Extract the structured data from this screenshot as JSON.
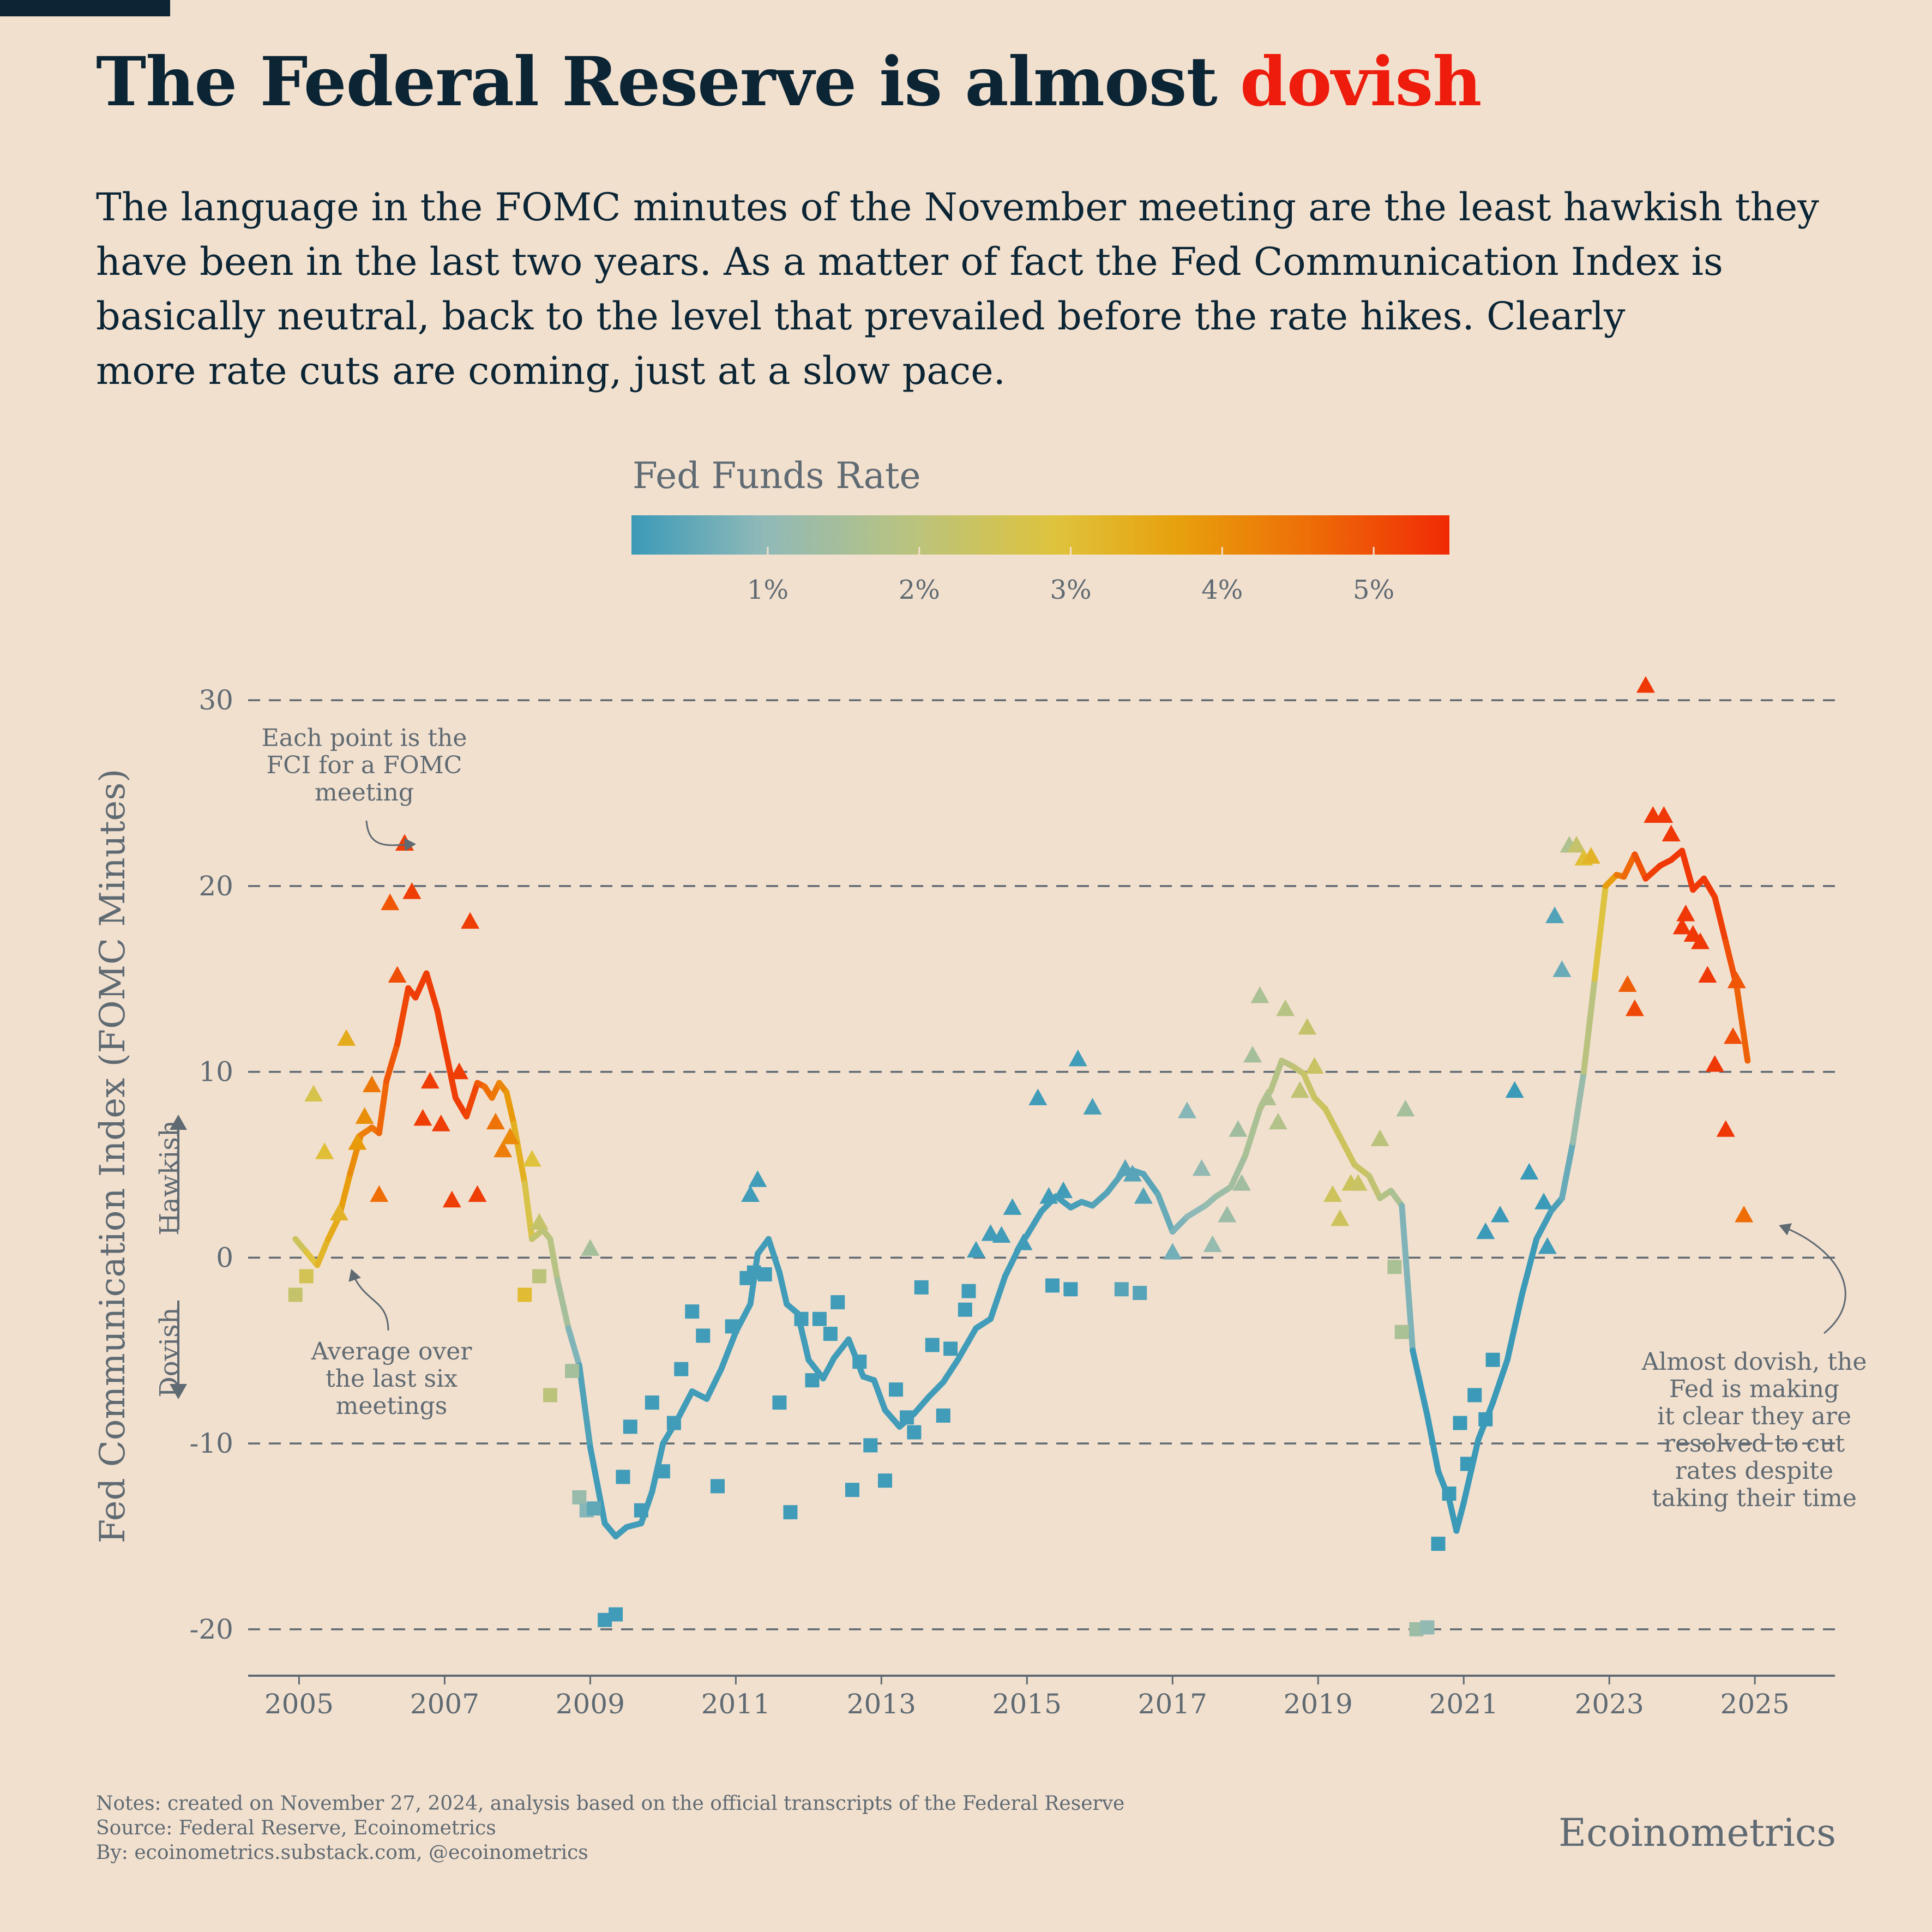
{
  "title": {
    "main": "The Federal Reserve is almost ",
    "accent": "dovish"
  },
  "subtitle_lines": [
    "The language in the FOMC minutes of the November meeting are the least hawkish they",
    "have been in the last two years. As a matter of fact the Fed Communication Index is",
    "basically neutral, back to the level that prevailed before the rate hikes. Clearly",
    "more rate cuts are coming, just at a slow pace."
  ],
  "colors": {
    "background": "#f2e0cf",
    "title": "#0b2535",
    "accent": "#ee1c0c",
    "axis": "#5f6a72",
    "gradient_stops": [
      "#3b9ab8",
      "#8fb9b8",
      "#b7c383",
      "#dfc33c",
      "#e7a00c",
      "#ee6d07",
      "#f02a06"
    ]
  },
  "footer": {
    "notes": "Notes: created on November 27, 2024, analysis based on the official transcripts of the Federal Reserve",
    "source": "Source: Federal Reserve, Ecoinometrics",
    "by": "By: ecoinometrics.substack.com, @ecoinometrics",
    "brand": "Ecoinometrics"
  },
  "chart_data": {
    "type": "line",
    "ylabel": "Fed Communication Index (FOMC Minutes)",
    "xlabel": "",
    "ylim": [
      -22.5,
      31
    ],
    "xlim": [
      2004.3,
      2026.1
    ],
    "yticks": [
      -20,
      -10,
      0,
      10,
      20,
      30
    ],
    "xticks": [
      2005,
      2007,
      2009,
      2011,
      2013,
      2015,
      2017,
      2019,
      2021,
      2023,
      2025
    ],
    "grid": "horizontal dashed",
    "legend": {
      "title": "Fed Funds Rate",
      "range": [
        0.1,
        5.5
      ],
      "ticks": [
        1,
        2,
        3,
        4,
        5
      ],
      "tick_labels": [
        "1%",
        "2%",
        "3%",
        "4%",
        "5%"
      ]
    },
    "direction_labels": {
      "hawkish": "Hawkish",
      "dovish": "Dovish"
    },
    "annotations": [
      {
        "text": [
          "Each point is the",
          "FCI for a FOMC",
          "meeting"
        ]
      },
      {
        "text": [
          "Average over",
          "the last six",
          "meetings"
        ]
      },
      {
        "text": [
          "Almost dovish, the",
          "Fed is making",
          "it clear they are",
          "resolved to cut",
          "rates despite",
          "taking their time"
        ]
      }
    ],
    "series": [
      {
        "name": "Average over the last six meetings",
        "x": [
          2004.95,
          2005.1,
          2005.25,
          2005.4,
          2005.55,
          2005.7,
          2005.85,
          2006.0,
          2006.1,
          2006.2,
          2006.35,
          2006.5,
          2006.6,
          2006.75,
          2006.9,
          2007.0,
          2007.15,
          2007.3,
          2007.45,
          2007.55,
          2007.65,
          2007.75,
          2007.85,
          2007.95,
          2008.1,
          2008.2,
          2008.35,
          2008.45,
          2008.55,
          2008.7,
          2008.85,
          2009.0,
          2009.2,
          2009.35,
          2009.5,
          2009.7,
          2009.85,
          2010.0,
          2010.2,
          2010.4,
          2010.6,
          2010.8,
          2011.0,
          2011.2,
          2011.3,
          2011.45,
          2011.6,
          2011.7,
          2011.85,
          2012.0,
          2012.2,
          2012.35,
          2012.55,
          2012.75,
          2012.9,
          2013.05,
          2013.25,
          2013.45,
          2013.65,
          2013.85,
          2014.05,
          2014.3,
          2014.5,
          2014.7,
          2014.9,
          2015.0,
          2015.2,
          2015.4,
          2015.6,
          2015.75,
          2015.9,
          2016.1,
          2016.3,
          2016.45,
          2016.6,
          2016.8,
          2017.0,
          2017.2,
          2017.45,
          2017.6,
          2017.8,
          2018.0,
          2018.2,
          2018.35,
          2018.5,
          2018.65,
          2018.8,
          2018.95,
          2019.1,
          2019.3,
          2019.5,
          2019.7,
          2019.85,
          2020.0,
          2020.15,
          2020.3,
          2020.5,
          2020.65,
          2020.8,
          2020.9,
          2021.0,
          2021.2,
          2021.4,
          2021.6,
          2021.8,
          2022.0,
          2022.2,
          2022.35,
          2022.5,
          2022.65,
          2022.8,
          2022.95,
          2023.1,
          2023.2,
          2023.35,
          2023.5,
          2023.7,
          2023.85,
          2024.0,
          2024.15,
          2024.3,
          2024.45,
          2024.6,
          2024.75,
          2024.9
        ],
        "y": [
          1.0,
          0.3,
          -0.4,
          1.0,
          2.2,
          4.5,
          6.6,
          7.0,
          6.7,
          9.5,
          11.5,
          14.5,
          14.0,
          15.3,
          13.3,
          11.4,
          8.6,
          7.6,
          9.4,
          9.2,
          8.6,
          9.4,
          8.9,
          7.2,
          4.0,
          1.0,
          1.5,
          1.0,
          -1.2,
          -3.8,
          -5.8,
          -10.2,
          -14.3,
          -15.0,
          -14.5,
          -14.3,
          -12.6,
          -10.0,
          -8.7,
          -7.2,
          -7.6,
          -6.0,
          -4.0,
          -2.5,
          0.2,
          1.0,
          -0.8,
          -2.5,
          -3.0,
          -5.5,
          -6.5,
          -5.4,
          -4.4,
          -6.4,
          -6.6,
          -8.2,
          -9.1,
          -8.4,
          -7.5,
          -6.7,
          -5.5,
          -3.8,
          -3.3,
          -1.0,
          0.6,
          1.2,
          2.5,
          3.3,
          2.7,
          3.0,
          2.8,
          3.5,
          4.5,
          4.7,
          4.5,
          3.4,
          1.4,
          2.2,
          2.8,
          3.3,
          3.8,
          5.5,
          8.0,
          9.0,
          10.6,
          10.3,
          9.9,
          8.6,
          8.0,
          6.5,
          5.0,
          4.4,
          3.2,
          3.6,
          2.8,
          -5.0,
          -8.5,
          -11.5,
          -13.0,
          -14.7,
          -13.2,
          -9.8,
          -7.8,
          -5.5,
          -2.0,
          1.0,
          2.5,
          3.2,
          6.2,
          10.0,
          15.0,
          20.0,
          20.6,
          20.5,
          21.7,
          20.4,
          21.1,
          21.4,
          21.9,
          19.8,
          20.4,
          19.4,
          17.0,
          14.6,
          10.6
        ],
        "rate": [
          2.2,
          2.6,
          3.0,
          3.3,
          3.6,
          3.9,
          4.2,
          4.4,
          4.6,
          4.8,
          5.0,
          5.25,
          5.25,
          5.25,
          5.25,
          5.25,
          5.25,
          5.25,
          5.0,
          4.7,
          4.5,
          4.3,
          4.0,
          3.6,
          3.0,
          2.3,
          2.0,
          2.0,
          1.8,
          1.2,
          0.5,
          0.15,
          0.15,
          0.15,
          0.15,
          0.15,
          0.15,
          0.15,
          0.15,
          0.15,
          0.15,
          0.15,
          0.15,
          0.15,
          0.15,
          0.15,
          0.15,
          0.15,
          0.15,
          0.15,
          0.15,
          0.15,
          0.15,
          0.15,
          0.15,
          0.15,
          0.15,
          0.15,
          0.15,
          0.15,
          0.15,
          0.15,
          0.15,
          0.15,
          0.15,
          0.2,
          0.2,
          0.2,
          0.2,
          0.25,
          0.35,
          0.4,
          0.4,
          0.4,
          0.4,
          0.45,
          0.7,
          0.9,
          1.1,
          1.2,
          1.4,
          1.5,
          1.7,
          1.8,
          1.9,
          2.0,
          2.2,
          2.3,
          2.4,
          2.4,
          2.4,
          2.2,
          2.0,
          1.7,
          1.55,
          0.1,
          0.1,
          0.1,
          0.1,
          0.1,
          0.1,
          0.1,
          0.1,
          0.1,
          0.1,
          0.1,
          0.2,
          0.35,
          0.8,
          1.6,
          2.3,
          3.2,
          4.3,
          4.5,
          4.8,
          5.1,
          5.33,
          5.33,
          5.33,
          5.33,
          5.33,
          5.33,
          5.1,
          4.9,
          4.6
        ]
      },
      {
        "name": "Hawkish meeting (triangles)",
        "x": [
          2005.2,
          2005.35,
          2005.55,
          2005.65,
          2005.8,
          2005.9,
          2006.0,
          2006.1,
          2006.25,
          2006.35,
          2006.45,
          2006.55,
          2006.7,
          2006.8,
          2006.95,
          2007.1,
          2007.2,
          2007.35,
          2007.45,
          2007.7,
          2007.8,
          2007.9,
          2008.2,
          2008.3,
          2009.0,
          2011.2,
          2011.3,
          2014.3,
          2014.5,
          2014.65,
          2014.8,
          2014.95,
          2015.15,
          2015.3,
          2015.5,
          2015.7,
          2015.9,
          2016.35,
          2016.45,
          2016.6,
          2017.0,
          2017.2,
          2017.4,
          2017.55,
          2017.75,
          2017.9,
          2017.95,
          2018.1,
          2018.2,
          2018.3,
          2018.45,
          2018.55,
          2018.75,
          2018.85,
          2018.95,
          2019.2,
          2019.3,
          2019.45,
          2019.55,
          2019.85,
          2020.2,
          2021.3,
          2021.5,
          2021.7,
          2021.9,
          2022.1,
          2022.15,
          2022.25,
          2022.35,
          2022.45,
          2022.55,
          2022.65,
          2022.75,
          2023.25,
          2023.35,
          2023.5,
          2023.6,
          2023.75,
          2023.85,
          2024.0,
          2024.05,
          2024.15,
          2024.25,
          2024.35,
          2024.45,
          2024.6,
          2024.7,
          2024.75,
          2024.85
        ],
        "y": [
          8.8,
          5.7,
          2.4,
          11.8,
          6.2,
          7.6,
          9.3,
          3.4,
          19.1,
          15.2,
          22.3,
          19.7,
          7.5,
          9.5,
          7.2,
          3.1,
          10.0,
          18.1,
          3.4,
          7.3,
          5.8,
          6.5,
          5.3,
          1.9,
          0.5,
          3.4,
          4.2,
          0.4,
          1.3,
          1.2,
          2.7,
          0.8,
          8.6,
          3.3,
          3.6,
          10.7,
          8.1,
          4.8,
          4.5,
          3.3,
          0.3,
          7.9,
          4.8,
          0.7,
          2.3,
          6.9,
          4.0,
          10.9,
          14.1,
          8.6,
          7.3,
          13.4,
          9.0,
          12.4,
          10.3,
          3.4,
          2.1,
          4.0,
          4.0,
          6.4,
          8.0,
          1.4,
          2.3,
          9.0,
          4.6,
          3.0,
          0.6,
          18.4,
          15.5,
          22.2,
          22.2,
          21.5,
          21.6,
          14.7,
          13.4,
          30.8,
          23.8,
          23.8,
          22.8,
          17.8,
          18.5,
          17.4,
          17.0,
          15.2,
          10.4,
          6.9,
          11.9,
          14.9,
          2.3
        ],
        "rate": [
          2.6,
          2.9,
          3.2,
          3.4,
          3.8,
          4.0,
          4.4,
          4.6,
          4.9,
          5.0,
          5.25,
          5.25,
          5.25,
          5.25,
          5.25,
          5.25,
          5.25,
          5.25,
          5.25,
          4.5,
          4.3,
          4.1,
          2.8,
          2.2,
          1.5,
          0.15,
          0.15,
          0.15,
          0.15,
          0.15,
          0.15,
          0.15,
          0.15,
          0.15,
          0.15,
          0.15,
          0.25,
          0.4,
          0.4,
          0.4,
          0.7,
          0.9,
          1.1,
          1.15,
          1.3,
          1.4,
          1.4,
          1.5,
          1.6,
          1.7,
          1.8,
          1.9,
          2.1,
          2.2,
          2.3,
          2.4,
          2.4,
          2.4,
          2.3,
          2.0,
          1.5,
          0.1,
          0.1,
          0.1,
          0.1,
          0.1,
          0.15,
          0.35,
          0.6,
          1.7,
          2.2,
          2.9,
          3.2,
          4.8,
          5.1,
          5.33,
          5.33,
          5.33,
          5.33,
          5.33,
          5.33,
          5.33,
          5.33,
          5.33,
          5.33,
          5.33,
          5.0,
          4.9,
          4.6
        ]
      },
      {
        "name": "Dovish meeting (squares)",
        "x": [
          2004.95,
          2005.1,
          2008.1,
          2008.3,
          2008.45,
          2008.75,
          2008.85,
          2008.95,
          2009.05,
          2009.2,
          2009.35,
          2009.45,
          2009.55,
          2009.7,
          2009.85,
          2010.0,
          2010.15,
          2010.25,
          2010.4,
          2010.55,
          2010.75,
          2010.95,
          2011.15,
          2011.25,
          2011.4,
          2011.6,
          2011.75,
          2011.9,
          2012.05,
          2012.15,
          2012.3,
          2012.4,
          2012.6,
          2012.7,
          2012.85,
          2013.05,
          2013.2,
          2013.35,
          2013.45,
          2013.55,
          2013.7,
          2013.85,
          2013.95,
          2014.15,
          2014.2,
          2015.35,
          2015.6,
          2016.3,
          2016.55,
          2020.05,
          2020.15,
          2020.35,
          2020.5,
          2020.65,
          2020.8,
          2020.95,
          2021.05,
          2021.15,
          2021.3,
          2021.4
        ],
        "y": [
          -2.0,
          -1.0,
          -2.0,
          -1.0,
          -7.4,
          -6.1,
          -12.9,
          -13.6,
          -13.5,
          -19.5,
          -19.2,
          -11.8,
          -9.1,
          -13.6,
          -7.8,
          -11.5,
          -8.9,
          -6.0,
          -2.9,
          -4.2,
          -12.3,
          -3.7,
          -1.1,
          -0.8,
          -0.9,
          -7.8,
          -13.7,
          -3.3,
          -6.6,
          -3.3,
          -4.1,
          -2.4,
          -12.5,
          -5.6,
          -10.1,
          -12.0,
          -7.1,
          -8.6,
          -9.4,
          -1.6,
          -4.7,
          -8.5,
          -4.9,
          -2.8,
          -1.8,
          -1.5,
          -1.7,
          -1.7,
          -1.9,
          -0.5,
          -4.0,
          -20.0,
          -19.9,
          -15.4,
          -12.7,
          -8.9,
          -11.1,
          -7.4,
          -8.7,
          -5.5
        ],
        "rate": [
          2.2,
          2.5,
          3.0,
          2.0,
          2.0,
          1.5,
          1.2,
          0.9,
          0.5,
          0.15,
          0.15,
          0.15,
          0.15,
          0.15,
          0.15,
          0.15,
          0.15,
          0.15,
          0.15,
          0.15,
          0.15,
          0.15,
          0.15,
          0.15,
          0.15,
          0.15,
          0.15,
          0.15,
          0.15,
          0.15,
          0.15,
          0.15,
          0.15,
          0.15,
          0.15,
          0.15,
          0.15,
          0.15,
          0.15,
          0.15,
          0.15,
          0.15,
          0.15,
          0.15,
          0.15,
          0.15,
          0.15,
          0.4,
          0.4,
          1.6,
          1.6,
          1.3,
          1.1,
          0.1,
          0.1,
          0.1,
          0.1,
          0.1,
          0.1,
          0.1
        ]
      }
    ]
  }
}
